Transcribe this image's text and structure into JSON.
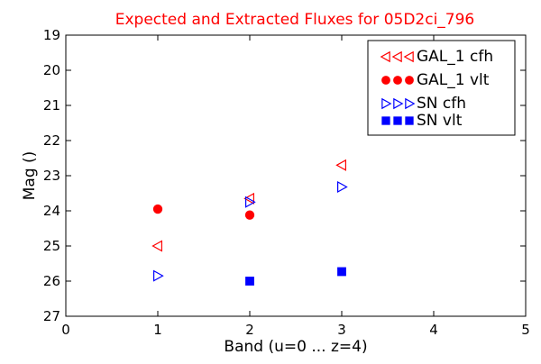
{
  "chart_data": {
    "type": "scatter",
    "title": "Expected and Extracted Fluxes for 05D2ci_796",
    "title_color": "#ff0000",
    "xlabel": "Band (u=0 ... z=4)",
    "ylabel": "Mag ()",
    "xlim": [
      0,
      5
    ],
    "ylim": [
      27,
      19
    ],
    "y_inverted": true,
    "xticks": [
      0,
      1,
      2,
      3,
      4,
      5
    ],
    "yticks": [
      19,
      20,
      21,
      22,
      23,
      24,
      25,
      26,
      27
    ],
    "grid": false,
    "legend_position": "top-right",
    "series": [
      {
        "name": "GAL_1 cfh",
        "marker": "triangle-left-open",
        "color": "#ff0000",
        "x": [
          1,
          2,
          3
        ],
        "y": [
          25.0,
          23.65,
          22.7
        ]
      },
      {
        "name": "GAL_1 vlt",
        "marker": "circle-filled",
        "color": "#ff0000",
        "x": [
          1,
          2
        ],
        "y": [
          23.95,
          24.12
        ]
      },
      {
        "name": "SN cfh",
        "marker": "triangle-right-open",
        "color": "#0000ff",
        "x": [
          1,
          2,
          3
        ],
        "y": [
          25.85,
          23.75,
          23.32
        ]
      },
      {
        "name": "SN vlt",
        "marker": "square-filled",
        "color": "#0000ff",
        "x": [
          2,
          3
        ],
        "y": [
          26.0,
          25.73
        ]
      }
    ]
  }
}
